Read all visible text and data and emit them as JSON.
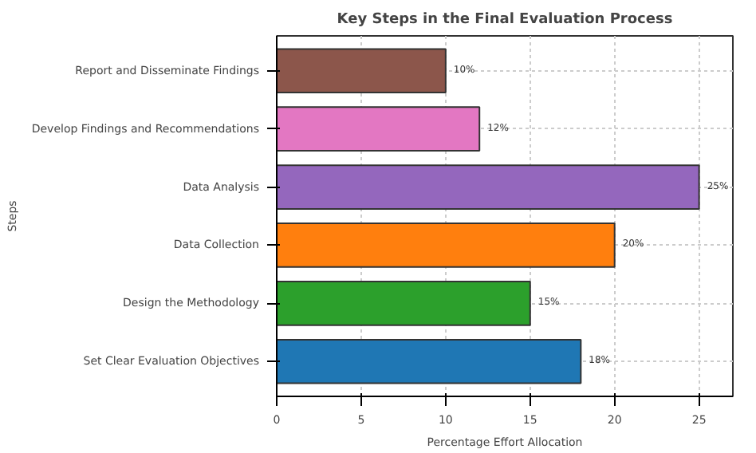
{
  "chart_data": {
    "type": "bar",
    "orientation": "horizontal",
    "title": "Key Steps in the Final Evaluation Process",
    "xlabel": "Percentage Effort Allocation",
    "ylabel": "Steps",
    "categories": [
      "Report and Disseminate Findings",
      "Develop Findings and Recommendations",
      "Data Analysis",
      "Data Collection",
      "Design the Methodology",
      "Set Clear Evaluation Objectives"
    ],
    "values": [
      10,
      12,
      25,
      20,
      15,
      18
    ],
    "colors": [
      "#8c564b",
      "#e377c2",
      "#9467bd",
      "#ff7f0e",
      "#2ca02c",
      "#1f77b4"
    ],
    "value_labels": [
      "10%",
      "12%",
      "25%",
      "20%",
      "15%",
      "18%"
    ],
    "xlim": [
      0,
      27
    ],
    "xticks": [
      0,
      5,
      10,
      15,
      20,
      25
    ],
    "grid": true
  }
}
